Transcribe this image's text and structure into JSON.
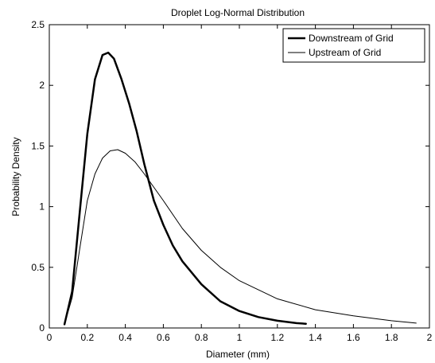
{
  "chart_data": {
    "type": "line",
    "title": "Droplet Log-Normal Distribution",
    "xlabel": "Diameter (mm)",
    "ylabel": "Probability Density",
    "xlim": [
      0,
      2
    ],
    "ylim": [
      0,
      2.5
    ],
    "x_ticks": [
      "0",
      "0.2",
      "0.4",
      "0.6",
      "0.8",
      "1",
      "1.2",
      "1.4",
      "1.6",
      "1.8",
      "2"
    ],
    "y_ticks": [
      "0",
      "0.5",
      "1",
      "1.5",
      "2",
      "2.5"
    ],
    "grid": true,
    "legend_position": "top-right",
    "series": [
      {
        "name": "Downstream of Grid",
        "color": "#000000",
        "line_weight": "thick",
        "x": [
          0.08,
          0.12,
          0.16,
          0.2,
          0.24,
          0.28,
          0.31,
          0.34,
          0.38,
          0.42,
          0.46,
          0.5,
          0.55,
          0.6,
          0.65,
          0.7,
          0.8,
          0.9,
          1.0,
          1.1,
          1.2,
          1.3,
          1.35
        ],
        "y": [
          0.03,
          0.3,
          0.95,
          1.6,
          2.05,
          2.25,
          2.27,
          2.22,
          2.05,
          1.85,
          1.62,
          1.35,
          1.05,
          0.85,
          0.68,
          0.55,
          0.36,
          0.22,
          0.14,
          0.09,
          0.06,
          0.04,
          0.035
        ]
      },
      {
        "name": "Upstream of Grid",
        "color": "#000000",
        "line_weight": "thin",
        "x": [
          0.08,
          0.12,
          0.16,
          0.2,
          0.24,
          0.28,
          0.32,
          0.36,
          0.4,
          0.45,
          0.5,
          0.6,
          0.7,
          0.8,
          0.9,
          1.0,
          1.2,
          1.4,
          1.6,
          1.8,
          1.93
        ],
        "y": [
          0.03,
          0.25,
          0.65,
          1.05,
          1.27,
          1.4,
          1.46,
          1.47,
          1.44,
          1.37,
          1.27,
          1.05,
          0.82,
          0.64,
          0.5,
          0.39,
          0.24,
          0.15,
          0.1,
          0.06,
          0.04
        ]
      }
    ]
  }
}
